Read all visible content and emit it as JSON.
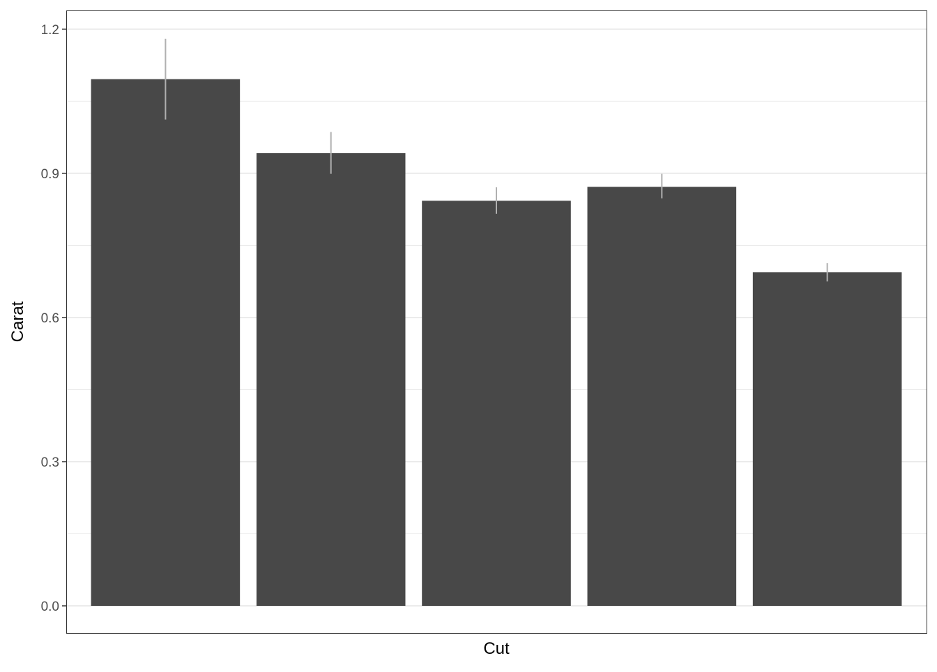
{
  "chart_data": {
    "type": "bar",
    "title": "",
    "xlabel": "Cut",
    "ylabel": "Carat",
    "categories": [
      "",
      "",
      "",
      "",
      ""
    ],
    "values": [
      1.096,
      0.942,
      0.843,
      0.872,
      0.694
    ],
    "error_bars": {
      "lower": [
        1.012,
        0.899,
        0.816,
        0.848,
        0.675
      ],
      "upper": [
        1.18,
        0.986,
        0.871,
        0.899,
        0.713
      ]
    },
    "yticks": [
      "0.0",
      "0.3",
      "0.6",
      "0.9",
      "1.2"
    ],
    "ytick_values": [
      0,
      0.3,
      0.6,
      0.9,
      1.2
    ],
    "ylim": [
      -0.0565,
      1.239
    ],
    "grid": true,
    "legend": "none",
    "colors": {
      "bar": "#484848",
      "error_bar": "#b0b0b0",
      "grid": "#ebebeb",
      "border": "#333333"
    }
  }
}
